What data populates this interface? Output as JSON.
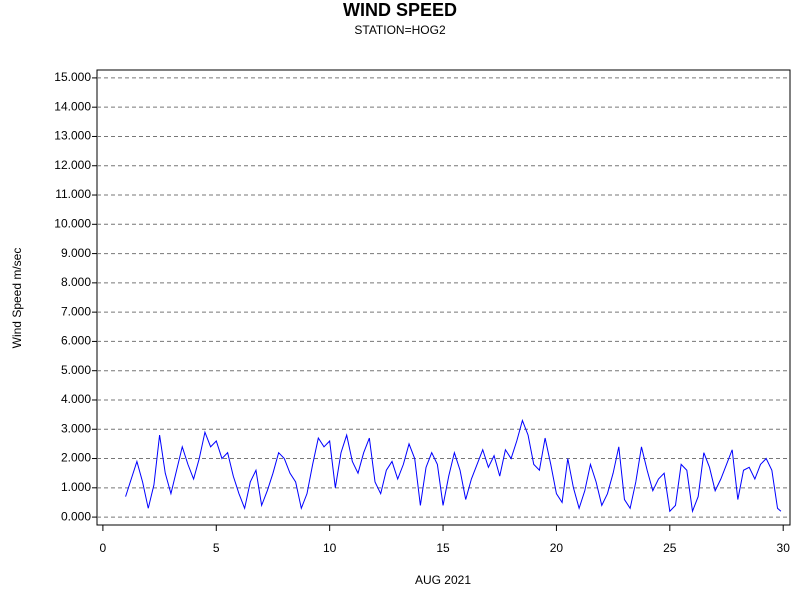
{
  "chart_data": {
    "type": "line",
    "title": "WIND SPEED",
    "subtitle": "STATION=HOG2",
    "x_label": "AUG 2021",
    "y_label": "Wind Speed m/sec",
    "xlim": [
      -0.26,
      30.3
    ],
    "xticks": [
      0,
      5,
      10,
      15,
      20,
      25,
      30
    ],
    "ylim": [
      -0.27,
      15.27
    ],
    "yticks": [
      {
        "value": 0,
        "label": "0.000"
      },
      {
        "value": 1,
        "label": "1.000"
      },
      {
        "value": 2,
        "label": "2.000"
      },
      {
        "value": 3,
        "label": "3.000"
      },
      {
        "value": 4,
        "label": "4.000"
      },
      {
        "value": 5,
        "label": "5.000"
      },
      {
        "value": 6,
        "label": "6.000"
      },
      {
        "value": 7,
        "label": "7.000"
      },
      {
        "value": 8,
        "label": "8.000"
      },
      {
        "value": 9,
        "label": "9.000"
      },
      {
        "value": 10,
        "label": "10.000"
      },
      {
        "value": 11,
        "label": "11.000"
      },
      {
        "value": 12,
        "label": "12.000"
      },
      {
        "value": 13,
        "label": "13.000"
      },
      {
        "value": 14,
        "label": "14.000"
      },
      {
        "value": 15,
        "label": "15.000"
      }
    ],
    "grid": true,
    "color": "#0000ff",
    "x": [
      1.0,
      1.25,
      1.5,
      1.75,
      2.0,
      2.25,
      2.5,
      2.75,
      3.0,
      3.25,
      3.5,
      3.75,
      4.0,
      4.25,
      4.5,
      4.75,
      5.0,
      5.25,
      5.5,
      5.75,
      6.0,
      6.25,
      6.5,
      6.75,
      7.0,
      7.25,
      7.5,
      7.75,
      8.0,
      8.25,
      8.5,
      8.75,
      9.0,
      9.25,
      9.5,
      9.75,
      10.0,
      10.25,
      10.5,
      10.75,
      11.0,
      11.25,
      11.5,
      11.75,
      12.0,
      12.25,
      12.5,
      12.75,
      13.0,
      13.25,
      13.5,
      13.75,
      14.0,
      14.25,
      14.5,
      14.75,
      15.0,
      15.25,
      15.5,
      15.75,
      16.0,
      16.25,
      16.5,
      16.75,
      17.0,
      17.25,
      17.5,
      17.75,
      18.0,
      18.25,
      18.5,
      18.75,
      19.0,
      19.25,
      19.5,
      19.75,
      20.0,
      20.25,
      20.5,
      20.75,
      21.0,
      21.25,
      21.5,
      21.75,
      22.0,
      22.25,
      22.5,
      22.75,
      23.0,
      23.25,
      23.5,
      23.75,
      24.0,
      24.25,
      24.5,
      24.75,
      25.0,
      25.25,
      25.5,
      25.75,
      26.0,
      26.25,
      26.5,
      26.75,
      27.0,
      27.25,
      27.5,
      27.75,
      28.0,
      28.25,
      28.5,
      28.75,
      29.0,
      29.25,
      29.5,
      29.75,
      29.9
    ],
    "values": [
      0.7,
      1.3,
      1.9,
      1.2,
      0.3,
      1.1,
      2.8,
      1.5,
      0.8,
      1.6,
      2.4,
      1.8,
      1.3,
      2.0,
      2.9,
      2.4,
      2.6,
      2.0,
      2.2,
      1.4,
      0.8,
      0.3,
      1.2,
      1.6,
      0.4,
      0.9,
      1.5,
      2.2,
      2.0,
      1.5,
      1.2,
      0.3,
      0.8,
      1.8,
      2.7,
      2.4,
      2.6,
      1.0,
      2.2,
      2.8,
      1.9,
      1.5,
      2.2,
      2.7,
      1.2,
      0.8,
      1.6,
      1.9,
      1.3,
      1.8,
      2.5,
      2.0,
      0.4,
      1.7,
      2.2,
      1.8,
      0.4,
      1.4,
      2.2,
      1.6,
      0.6,
      1.3,
      1.8,
      2.3,
      1.7,
      2.1,
      1.4,
      2.3,
      2.0,
      2.6,
      3.3,
      2.8,
      1.8,
      1.6,
      2.7,
      1.8,
      0.8,
      0.5,
      2.0,
      1.0,
      0.3,
      0.9,
      1.8,
      1.2,
      0.4,
      0.8,
      1.5,
      2.4,
      0.6,
      0.3,
      1.2,
      2.4,
      1.6,
      0.9,
      1.3,
      1.5,
      0.2,
      0.4,
      1.8,
      1.6,
      0.2,
      0.7,
      2.2,
      1.7,
      0.9,
      1.3,
      1.8,
      2.3,
      0.6,
      1.6,
      1.7,
      1.3,
      1.8,
      2.0,
      1.6,
      0.3,
      0.2
    ]
  }
}
